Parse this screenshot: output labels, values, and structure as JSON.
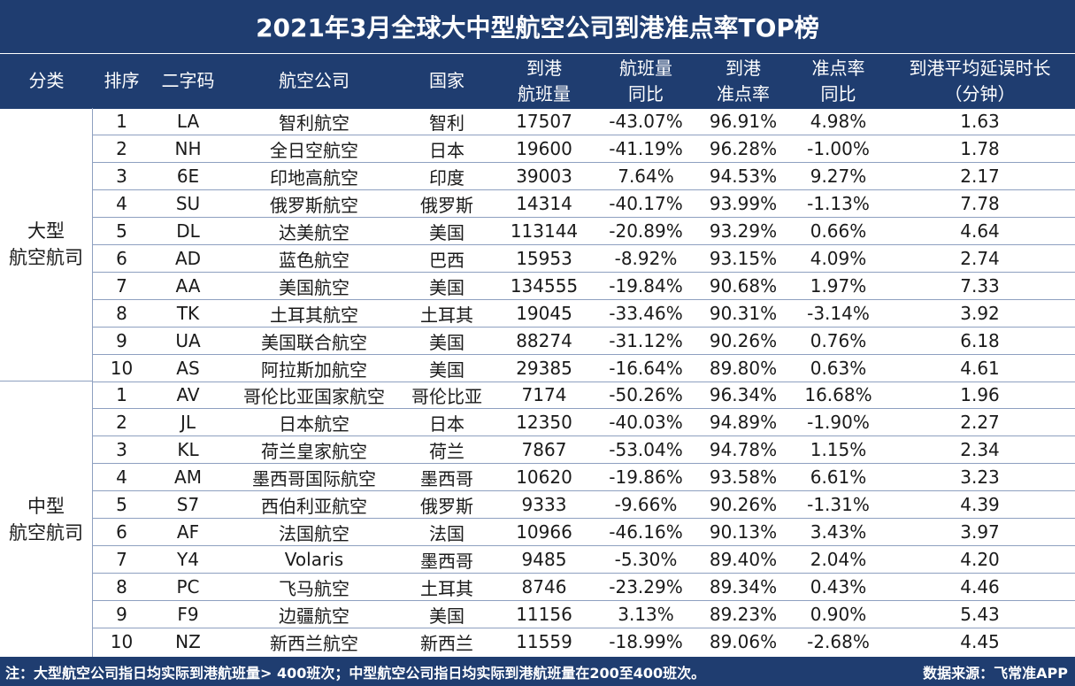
{
  "title": "2021年3月全球大中型航空公司到港准点率TOP榜",
  "headers": {
    "category": "分类",
    "rank": "排序",
    "code": "二字码",
    "airline": "航空公司",
    "country": "国家",
    "flights_l1": "到港",
    "flights_l2": "航班量",
    "yoy_l1": "航班量",
    "yoy_l2": "同比",
    "otp_l1": "到港",
    "otp_l2": "准点率",
    "otp_yoy_l1": "准点率",
    "otp_yoy_l2": "同比",
    "delay_l1": "到港平均延误时长",
    "delay_l2": "（分钟）"
  },
  "groups": [
    {
      "label_l1": "大型",
      "label_l2": "航空航司",
      "rows": [
        {
          "rank": "1",
          "code": "LA",
          "airline": "智利航空",
          "country": "智利",
          "flights": "17507",
          "yoy": "-43.07%",
          "otp": "96.91%",
          "otp_yoy": "4.98%",
          "delay": "1.63"
        },
        {
          "rank": "2",
          "code": "NH",
          "airline": "全日空航空",
          "country": "日本",
          "flights": "19600",
          "yoy": "-41.19%",
          "otp": "96.28%",
          "otp_yoy": "-1.00%",
          "delay": "1.78"
        },
        {
          "rank": "3",
          "code": "6E",
          "airline": "印地高航空",
          "country": "印度",
          "flights": "39003",
          "yoy": "7.64%",
          "otp": "94.53%",
          "otp_yoy": "9.27%",
          "delay": "2.17"
        },
        {
          "rank": "4",
          "code": "SU",
          "airline": "俄罗斯航空",
          "country": "俄罗斯",
          "flights": "14314",
          "yoy": "-40.17%",
          "otp": "93.99%",
          "otp_yoy": "-1.13%",
          "delay": "7.78"
        },
        {
          "rank": "5",
          "code": "DL",
          "airline": "达美航空",
          "country": "美国",
          "flights": "113144",
          "yoy": "-20.89%",
          "otp": "93.29%",
          "otp_yoy": "0.66%",
          "delay": "4.64"
        },
        {
          "rank": "6",
          "code": "AD",
          "airline": "蓝色航空",
          "country": "巴西",
          "flights": "15953",
          "yoy": "-8.92%",
          "otp": "93.15%",
          "otp_yoy": "4.09%",
          "delay": "2.74"
        },
        {
          "rank": "7",
          "code": "AA",
          "airline": "美国航空",
          "country": "美国",
          "flights": "134555",
          "yoy": "-19.84%",
          "otp": "90.68%",
          "otp_yoy": "1.97%",
          "delay": "7.33"
        },
        {
          "rank": "8",
          "code": "TK",
          "airline": "土耳其航空",
          "country": "土耳其",
          "flights": "19045",
          "yoy": "-33.46%",
          "otp": "90.31%",
          "otp_yoy": "-3.14%",
          "delay": "3.92"
        },
        {
          "rank": "9",
          "code": "UA",
          "airline": "美国联合航空",
          "country": "美国",
          "flights": "88274",
          "yoy": "-31.12%",
          "otp": "90.26%",
          "otp_yoy": "0.76%",
          "delay": "6.18"
        },
        {
          "rank": "10",
          "code": "AS",
          "airline": "阿拉斯加航空",
          "country": "美国",
          "flights": "29385",
          "yoy": "-16.64%",
          "otp": "89.80%",
          "otp_yoy": "0.63%",
          "delay": "4.61"
        }
      ]
    },
    {
      "label_l1": "中型",
      "label_l2": "航空航司",
      "rows": [
        {
          "rank": "1",
          "code": "AV",
          "airline": "哥伦比亚国家航空",
          "country": "哥伦比亚",
          "flights": "7174",
          "yoy": "-50.26%",
          "otp": "96.34%",
          "otp_yoy": "16.68%",
          "delay": "1.96"
        },
        {
          "rank": "2",
          "code": "JL",
          "airline": "日本航空",
          "country": "日本",
          "flights": "12350",
          "yoy": "-40.03%",
          "otp": "94.89%",
          "otp_yoy": "-1.90%",
          "delay": "2.27"
        },
        {
          "rank": "3",
          "code": "KL",
          "airline": "荷兰皇家航空",
          "country": "荷兰",
          "flights": "7867",
          "yoy": "-53.04%",
          "otp": "94.78%",
          "otp_yoy": "1.15%",
          "delay": "2.34"
        },
        {
          "rank": "4",
          "code": "AM",
          "airline": "墨西哥国际航空",
          "country": "墨西哥",
          "flights": "10620",
          "yoy": "-19.86%",
          "otp": "93.58%",
          "otp_yoy": "6.61%",
          "delay": "3.23"
        },
        {
          "rank": "5",
          "code": "S7",
          "airline": "西伯利亚航空",
          "country": "俄罗斯",
          "flights": "9333",
          "yoy": "-9.66%",
          "otp": "90.26%",
          "otp_yoy": "-1.31%",
          "delay": "4.39"
        },
        {
          "rank": "6",
          "code": "AF",
          "airline": "法国航空",
          "country": "法国",
          "flights": "10966",
          "yoy": "-46.16%",
          "otp": "90.13%",
          "otp_yoy": "3.43%",
          "delay": "3.97"
        },
        {
          "rank": "7",
          "code": "Y4",
          "airline": "Volaris",
          "country": "墨西哥",
          "flights": "9485",
          "yoy": "-5.30%",
          "otp": "89.40%",
          "otp_yoy": "2.04%",
          "delay": "4.20"
        },
        {
          "rank": "8",
          "code": "PC",
          "airline": "飞马航空",
          "country": "土耳其",
          "flights": "8746",
          "yoy": "-23.29%",
          "otp": "89.34%",
          "otp_yoy": "0.43%",
          "delay": "4.46"
        },
        {
          "rank": "9",
          "code": "F9",
          "airline": "边疆航空",
          "country": "美国",
          "flights": "11156",
          "yoy": "3.13%",
          "otp": "89.23%",
          "otp_yoy": "0.90%",
          "delay": "5.43"
        },
        {
          "rank": "10",
          "code": "NZ",
          "airline": "新西兰航空",
          "country": "新西兰",
          "flights": "11559",
          "yoy": "-18.99%",
          "otp": "89.06%",
          "otp_yoy": "-2.68%",
          "delay": "4.45"
        }
      ]
    }
  ],
  "footer": {
    "note": "注：大型航空公司指日均实际到港航班量> 400班次；中型航空公司指日均实际到港航班量在200至400班次。",
    "source": "数据来源：飞常准APP"
  },
  "colors": {
    "header_bg": "#1f3d70",
    "header_text": "#ffffff",
    "grid_line": "#8ea0c0",
    "body_text": "#1a1a1a"
  }
}
